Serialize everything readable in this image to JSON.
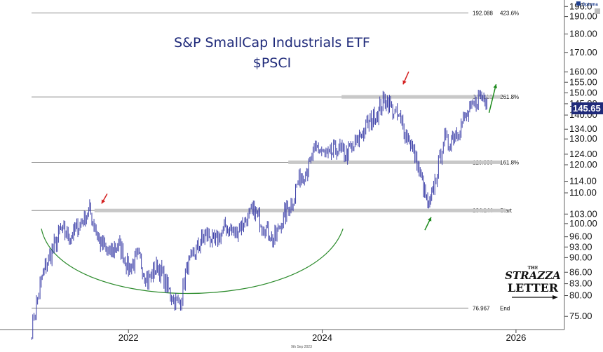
{
  "chart_data": {
    "type": "line",
    "scale": "log",
    "title": "S&P SmallCap Industrials ETF",
    "subtitle": "$PSCI",
    "x_ticks": [
      "2022",
      "2024",
      "2026"
    ],
    "x_range": [
      2021.0,
      2026.5
    ],
    "ylim": [
      72,
      200
    ],
    "y_ticks": [
      "196.0",
      "190.00",
      "180.00",
      "170.00",
      "160.00",
      "155.00",
      "150.00",
      "145.00",
      "140.00",
      "134.00",
      "130.00",
      "124.00",
      "120.00",
      "114.00",
      "110.00",
      "103.00",
      "100.00",
      "96.00",
      "93.00",
      "90.00",
      "86.00",
      "83.00",
      "80.00",
      "75.00"
    ],
    "last_price_label": "145.65",
    "last_price": 145.65,
    "fib_levels": [
      {
        "value": 192.088,
        "label": "192.088",
        "ratio": "423.6%"
      },
      {
        "value": 148.116,
        "label": "148.116",
        "ratio": "261.8%"
      },
      {
        "value": 120.939,
        "label": "120.939",
        "ratio": "161.8%"
      },
      {
        "value": 104.144,
        "label": "104.144",
        "ratio": "Start"
      },
      {
        "value": 76.967,
        "label": "76.967",
        "ratio": "End"
      }
    ],
    "series": [
      {
        "name": "PSCI",
        "x": [
          2021.0,
          2021.05,
          2021.1,
          2021.15,
          2021.2,
          2021.3,
          2021.4,
          2021.5,
          2021.6,
          2021.7,
          2021.8,
          2021.9,
          2022.0,
          2022.1,
          2022.2,
          2022.3,
          2022.4,
          2022.5,
          2022.55,
          2022.6,
          2022.7,
          2022.8,
          2022.9,
          2023.0,
          2023.1,
          2023.2,
          2023.3,
          2023.4,
          2023.5,
          2023.6,
          2023.7,
          2023.75,
          2023.85,
          2023.95,
          2024.05,
          2024.15,
          2024.25,
          2024.35,
          2024.45,
          2024.55,
          2024.65,
          2024.75,
          2024.8,
          2024.9,
          2025.0,
          2025.1,
          2025.15,
          2025.2,
          2025.25,
          2025.3,
          2025.4,
          2025.5,
          2025.6,
          2025.68,
          2025.7
        ],
        "values": [
          72,
          78,
          84,
          88,
          91,
          98,
          96,
          100,
          104,
          95,
          91,
          94,
          87,
          90,
          84,
          88,
          82,
          78,
          80,
          87,
          92,
          97,
          94,
          99,
          97,
          101,
          104,
          99,
          95,
          102,
          108,
          114,
          119,
          127,
          123,
          126,
          124,
          128,
          135,
          140,
          147,
          141,
          138,
          130,
          118,
          104,
          112,
          120,
          130,
          128,
          134,
          140,
          147,
          149,
          146
        ]
      }
    ],
    "annotations": {
      "curve": "rounded bottom (cup) formation",
      "red_arrows": [
        "peak 2021",
        "peak 2024"
      ],
      "green_arrows": [
        "low 2025",
        "breakout 2025"
      ]
    }
  },
  "branding": {
    "source": "Optuma",
    "logo_line1": "THE",
    "logo_line2": "STRAZZA",
    "logo_line3": "LETTER",
    "date": "9th Sep 2023"
  },
  "colors": {
    "price": "#3c3fa8",
    "title": "#1f2a7a",
    "curve": "#2a8a2a",
    "red_arrow": "#d42020",
    "green_arrow": "#1d8a1d",
    "band": "#c8c8c8",
    "last_box": "#1f2a7a"
  }
}
